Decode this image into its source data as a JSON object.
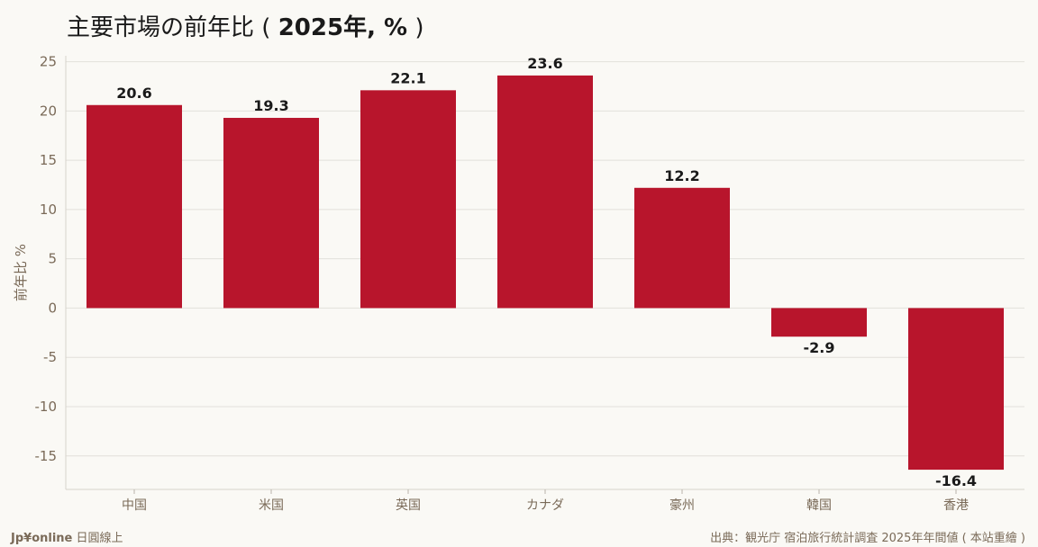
{
  "title": {
    "main": "主要市場の前年比",
    "paren_open": "(",
    "bold": "2025年, %",
    "paren_close": ")"
  },
  "footer": {
    "brand": "Jp¥online",
    "brand_sub": "日圓線上",
    "source": "出典：観光庁 宿泊旅行統計調査 2025年年間値 ( 本站重繪 )"
  },
  "colors": {
    "bar": "#b8152c",
    "background": "#faf9f5",
    "grid": "#e2e0da",
    "axis_text": "#7a6a58"
  },
  "chart_data": {
    "type": "bar",
    "categories": [
      "中国",
      "米国",
      "英国",
      "カナダ",
      "豪州",
      "韓国",
      "香港"
    ],
    "values": [
      20.6,
      19.3,
      22.1,
      23.6,
      12.2,
      -2.9,
      -16.4
    ],
    "data_labels": [
      "20.6",
      "19.3",
      "22.1",
      "23.6",
      "12.2",
      "-2.9",
      "-16.4"
    ],
    "ylabel": "前年比 %",
    "yticks": [
      25,
      20,
      15,
      10,
      5,
      0,
      -5,
      -10,
      -15
    ],
    "ylim": [
      -18.4,
      25.6
    ],
    "grid": true,
    "legend": "none"
  }
}
